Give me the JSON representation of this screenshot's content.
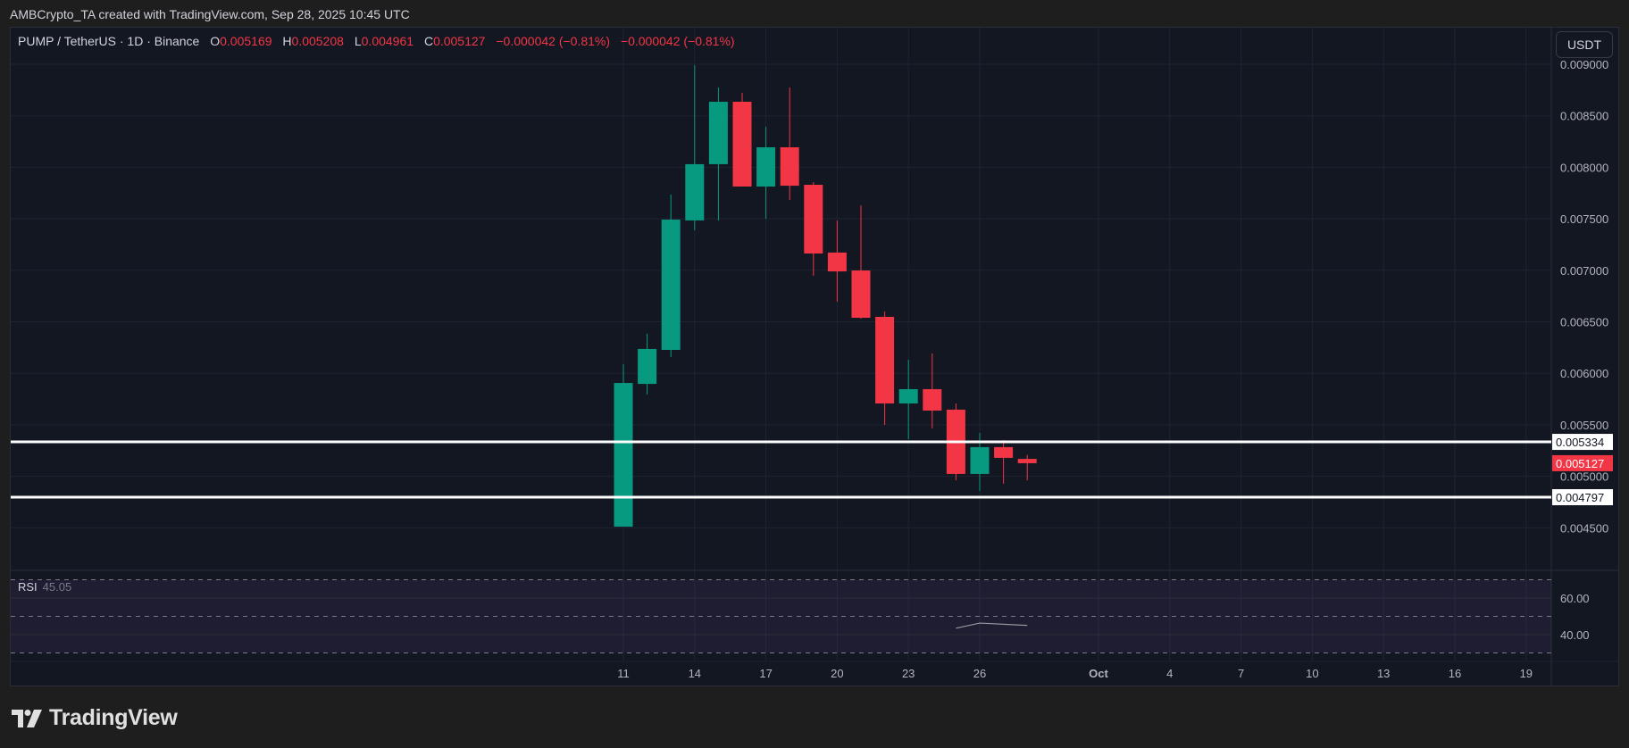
{
  "header": {
    "credit": "AMBCrypto_TA created with TradingView.com, Sep 28, 2025 10:45 UTC"
  },
  "legend": {
    "symbol": "PUMP / TetherUS · 1D · Binance",
    "o_label": "O",
    "o_value": "0.005169",
    "h_label": "H",
    "h_value": "0.005208",
    "l_label": "L",
    "l_value": "0.004961",
    "c_label": "C",
    "c_value": "0.005127",
    "change1": "−0.000042 (−0.81%)",
    "change2": "−0.000042 (−0.81%)"
  },
  "currency_button": "USDT",
  "rsi": {
    "label": "RSI",
    "value": "45.05"
  },
  "brand": "TradingView",
  "colors": {
    "up": "#089981",
    "down": "#f23645",
    "background": "#131722",
    "grid": "#1f2433",
    "level_line": "#ffffff",
    "last_price_badge": "#f23645"
  },
  "chart_data": {
    "type": "candlestick",
    "title": "PUMP / TetherUS · 1D · Binance",
    "xlabel": "",
    "ylabel": "USDT",
    "ylim": [
      0.0041,
      0.0092
    ],
    "grid": true,
    "x_ticks": [
      "11",
      "14",
      "17",
      "20",
      "23",
      "26",
      "Oct",
      "4",
      "7",
      "10",
      "13",
      "16",
      "19"
    ],
    "y_ticks": [
      "0.009000",
      "0.008500",
      "0.008000",
      "0.007500",
      "0.007000",
      "0.006500",
      "0.006000",
      "0.005500",
      "0.005000",
      "0.004500"
    ],
    "candles": [
      {
        "date": "Sep 11",
        "open": 0.004511,
        "high": 0.006088,
        "low": 0.004511,
        "close": 0.005906
      },
      {
        "date": "Sep 12",
        "open": 0.005897,
        "high": 0.006385,
        "low": 0.005794,
        "close": 0.006236
      },
      {
        "date": "Sep 13",
        "open": 0.006227,
        "high": 0.007735,
        "low": 0.006158,
        "close": 0.007492
      },
      {
        "date": "Sep 14",
        "open": 0.007484,
        "high": 0.008991,
        "low": 0.007388,
        "close": 0.00803
      },
      {
        "date": "Sep 15",
        "open": 0.00803,
        "high": 0.008775,
        "low": 0.007484,
        "close": 0.008636
      },
      {
        "date": "Sep 16",
        "open": 0.008636,
        "high": 0.008723,
        "low": 0.007813,
        "close": 0.007813
      },
      {
        "date": "Sep 17",
        "open": 0.007813,
        "high": 0.008393,
        "low": 0.007501,
        "close": 0.008194
      },
      {
        "date": "Sep 18",
        "open": 0.008194,
        "high": 0.008775,
        "low": 0.007683,
        "close": 0.007821
      },
      {
        "date": "Sep 19",
        "open": 0.00783,
        "high": 0.007856,
        "low": 0.006946,
        "close": 0.007163
      },
      {
        "date": "Sep 20",
        "open": 0.007172,
        "high": 0.007483,
        "low": 0.006695,
        "close": 0.006989
      },
      {
        "date": "Sep 21",
        "open": 0.006998,
        "high": 0.00763,
        "low": 0.00653,
        "close": 0.006539
      },
      {
        "date": "Sep 22",
        "open": 0.006548,
        "high": 0.0066,
        "low": 0.005499,
        "close": 0.005707
      },
      {
        "date": "Sep 23",
        "open": 0.005707,
        "high": 0.006132,
        "low": 0.00536,
        "close": 0.005846
      },
      {
        "date": "Sep 24",
        "open": 0.005846,
        "high": 0.006193,
        "low": 0.005464,
        "close": 0.005638
      },
      {
        "date": "Sep 25",
        "open": 0.005647,
        "high": 0.005707,
        "low": 0.004962,
        "close": 0.005023
      },
      {
        "date": "Sep 26",
        "open": 0.005023,
        "high": 0.005421,
        "low": 0.004858,
        "close": 0.005283
      },
      {
        "date": "Sep 27",
        "open": 0.005283,
        "high": 0.005352,
        "low": 0.004927,
        "close": 0.005179
      },
      {
        "date": "Sep 28",
        "open": 0.005169,
        "high": 0.005208,
        "low": 0.004961,
        "close": 0.005127
      }
    ],
    "horizontal_lines": [
      {
        "price": 0.005334,
        "label": "0.005334",
        "color": "#ffffff"
      },
      {
        "price": 0.004797,
        "label": "0.004797",
        "color": "#ffffff"
      }
    ],
    "last_price": {
      "price": 0.005127,
      "label": "0.005127",
      "color": "#f23645"
    },
    "rsi": {
      "name": "RSI",
      "current": 45.05,
      "levels": [
        70,
        50,
        30
      ],
      "y_ticks": [
        "60.00",
        "40.00"
      ],
      "series": [
        {
          "date": "Sep 25",
          "value": 43.5
        },
        {
          "date": "Sep 26",
          "value": 46.3
        },
        {
          "date": "Sep 28",
          "value": 45.05
        }
      ]
    }
  }
}
